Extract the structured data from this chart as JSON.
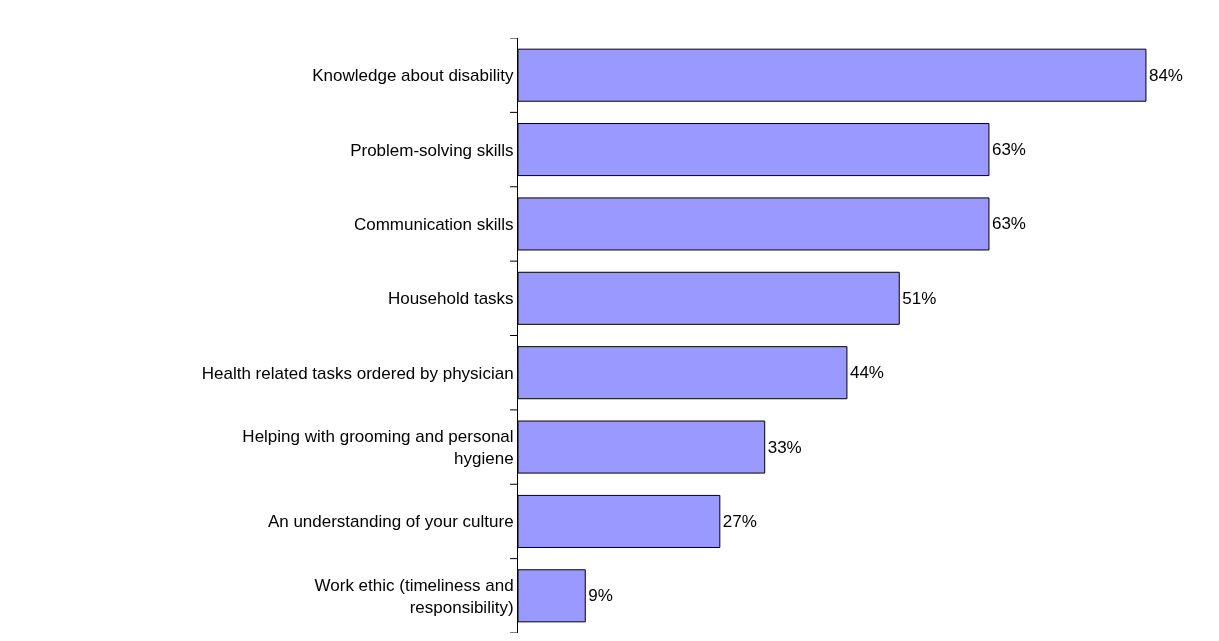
{
  "chart_data": {
    "type": "bar",
    "orientation": "horizontal",
    "categories": [
      "Knowledge about disability",
      "Problem-solving skills",
      "Communication skills",
      "Household tasks",
      "Health related tasks ordered by physician",
      "Helping with grooming and personal hygiene",
      "An understanding of your culture",
      "Work ethic (timeliness and responsibility)"
    ],
    "values": [
      84,
      63,
      63,
      51,
      44,
      33,
      27,
      9
    ],
    "value_labels": [
      "84%",
      "63%",
      "63%",
      "51%",
      "44%",
      "33%",
      "27%",
      "9%"
    ],
    "color": "#9999ff",
    "grid": false,
    "legend": false,
    "tick_labels": "y"
  }
}
